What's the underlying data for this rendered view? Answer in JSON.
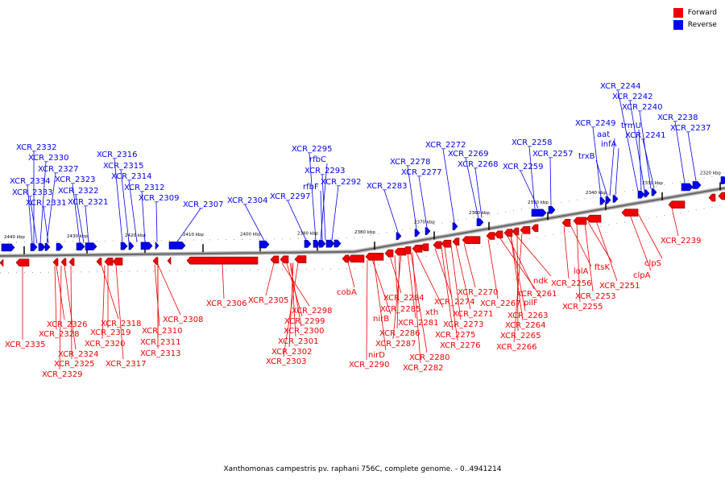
{
  "legend": {
    "forward_label": "Forward",
    "reverse_label": "Reverse",
    "forward_color": "#ee0000",
    "reverse_color": "#0000ee"
  },
  "caption": "Xanthomonas campestris pv. raphani 756C, complete genome. - 0..4941214",
  "ticks": [
    "2440 kbp",
    "2430 kbp",
    "2420 kbp",
    "2410 kbp",
    "2400 kbp",
    "2390 kbp",
    "2380 kbp",
    "2370 kbp",
    "2360 kbp",
    "2350 kbp",
    "2340 kbp",
    "2330 kbp",
    "2320 kbp"
  ],
  "reverse_labels": [
    "XCR_2332",
    "XCR_2330",
    "XCR_2327",
    "XCR_2334",
    "XCR_2323",
    "XCR_2333",
    "XCR_2322",
    "XCR_2331",
    "XCR_2321",
    "XCR_2316",
    "XCR_2315",
    "XCR_2314",
    "XCR_2312",
    "XCR_2309",
    "XCR_2307",
    "XCR_2304",
    "XCR_2297",
    "XCR_2295",
    "rfbC",
    "XCR_2293",
    "rfbF",
    "XCR_2292",
    "XCR_2283",
    "XCR_2278",
    "XCR_2277",
    "XCR_2272",
    "XCR_2269",
    "XCR_2268",
    "XCR_2258",
    "XCR_2257",
    "XCR_2259",
    "XCR_2249",
    "trxB",
    "aat",
    "infA",
    "XCR_2244",
    "XCR_2242",
    "XCR_2240",
    "trmU",
    "XCR_2241",
    "XCR_2238",
    "XCR_2237"
  ],
  "forward_labels": [
    "XCR_2335",
    "XCR_2326",
    "XCR_2328",
    "XCR_2324",
    "XCR_2325",
    "XCR_2329",
    "XCR_2318",
    "XCR_2319",
    "XCR_2320",
    "XCR_2317",
    "XCR_2308",
    "XCR_2310",
    "XCR_2311",
    "XCR_2313",
    "XCR_2306",
    "XCR_2305",
    "XCR_2298",
    "XCR_2299",
    "XCR_2300",
    "XCR_2301",
    "XCR_2302",
    "XCR_2303",
    "cobA",
    "nirB",
    "nirD",
    "XCR_2290",
    "XCR_2284",
    "XCR_2285",
    "XCR_2286",
    "XCR_2287",
    "XCR_2281",
    "xth",
    "XCR_2280",
    "XCR_2282",
    "XCR_2274",
    "XCR_2275",
    "XCR_2276",
    "XCR_2273",
    "XCR_2271",
    "XCR_2270",
    "XCR_2267",
    "pilF",
    "XCR_2261",
    "ndk",
    "XCR_2263",
    "XCR_2264",
    "XCR_2265",
    "XCR_2266",
    "XCR_2256",
    "lolA",
    "XCR_2255",
    "XCR_2253",
    "ftsK",
    "XCR_2251",
    "clpA",
    "clpS",
    "XCR_2239"
  ]
}
